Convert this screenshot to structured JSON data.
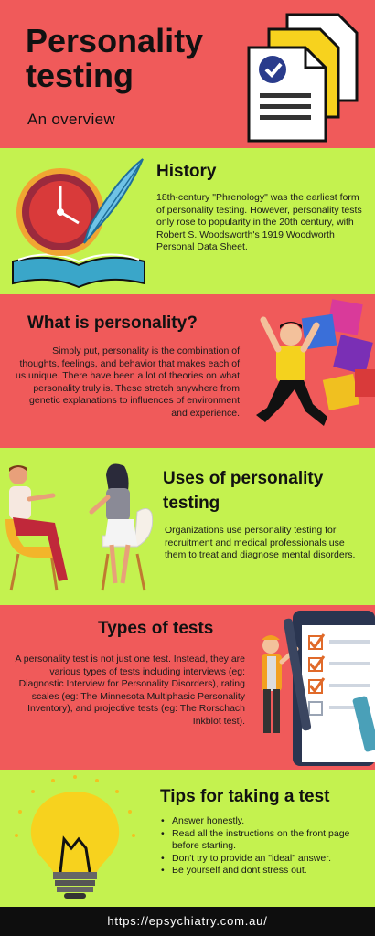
{
  "title": {
    "heading": "Personality testing",
    "subtitle": "An overview"
  },
  "history": {
    "heading": "History",
    "text": "18th-century \"Phrenology\" was the earliest form of personality testing. However, personality tests only rose to popularity in the 20th century, with Robert S. Woodsworth's 1919 Woodworth Personal Data Sheet."
  },
  "personality": {
    "heading": "What is personality?",
    "text": "Simply put, personality is the combination of thoughts, feelings, and behavior that makes each of us unique. There have been a lot of theories on what personality truly is. These stretch anywhere from genetic explanations to influences of environment and experience."
  },
  "uses": {
    "heading": "Uses of personality testing",
    "text": "Organizations use personality testing for recruitment and medical professionals use them to treat and diagnose mental disorders."
  },
  "types": {
    "heading": "Types of tests",
    "text": "A personality test is not just one test. Instead, they are various types of tests including interviews (eg: Diagnostic Interview for Personality Disorders), rating scales (eg: The Minnesota Multiphasic Personality Inventory), and projective tests (eg: The Rorschach Inkblot test)."
  },
  "tips": {
    "heading": "Tips for taking a test",
    "items": [
      "Answer honestly.",
      "Read all the instructions on the front page before starting.",
      "Don't try to provide an \"ideal\" answer.",
      "Be yourself and dont stress out."
    ]
  },
  "footer": {
    "url": "https://epsychiatry.com.au/"
  },
  "colors": {
    "red_band": "#f05a5a",
    "green_band": "#c4f24f",
    "footer_bg": "#0e0e0e",
    "text": "#111111"
  },
  "icons": [
    "documents-checklist-icon",
    "clock-quill-book-icon",
    "puzzle-person-icon",
    "two-people-chat-icon",
    "clipboard-checklist-icon",
    "lightbulb-icon"
  ]
}
